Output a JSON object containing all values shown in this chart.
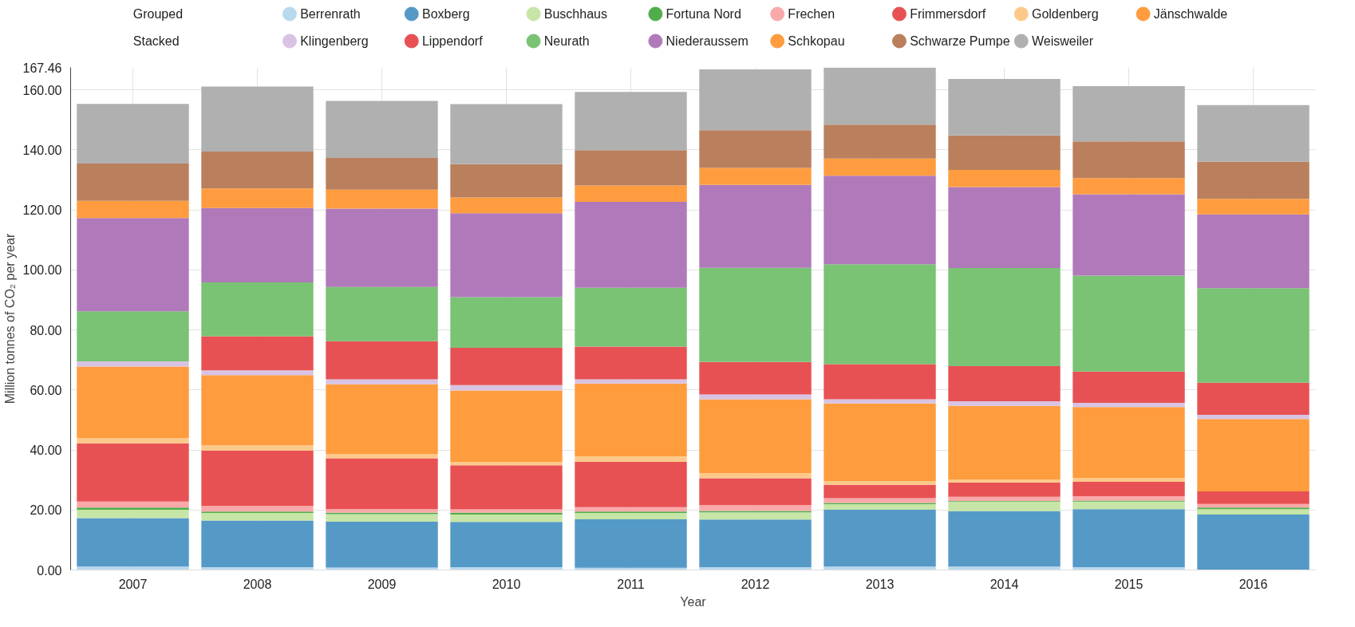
{
  "chart_data": {
    "type": "bar",
    "stacked": true,
    "xlabel": "Year",
    "ylabel": "Million tonnes of CO₂ per year",
    "categories": [
      "2007",
      "2008",
      "2009",
      "2010",
      "2011",
      "2012",
      "2013",
      "2014",
      "2015",
      "2016"
    ],
    "ylim": [
      0,
      167.46
    ],
    "yticks": [
      {
        "value": 0,
        "label": "0.00"
      },
      {
        "value": 20,
        "label": "20.00"
      },
      {
        "value": 40,
        "label": "40.00"
      },
      {
        "value": 60,
        "label": "60.00"
      },
      {
        "value": 80,
        "label": "80.00"
      },
      {
        "value": 100,
        "label": "100.00"
      },
      {
        "value": 120,
        "label": "120.00"
      },
      {
        "value": 140,
        "label": "140.00"
      },
      {
        "value": 160,
        "label": "160.00"
      },
      {
        "value": 167.46,
        "label": "167.46"
      }
    ],
    "grid": true,
    "legend": "top",
    "annotations": [
      "Grouped",
      "Stacked"
    ],
    "series": [
      {
        "name": "Berrenrath",
        "color": "#b9d9ee",
        "values": [
          1.1,
          0.9,
          0.8,
          0.9,
          0.7,
          0.9,
          1.1,
          1.1,
          0.9,
          0
        ]
      },
      {
        "name": "Boxberg",
        "color": "#5599c7",
        "values": [
          16.2,
          15.6,
          15.3,
          15.1,
          16.2,
          15.9,
          19.0,
          18.5,
          19.4,
          18.5
        ]
      },
      {
        "name": "Buschhaus",
        "color": "#c6e5a6",
        "values": [
          2.8,
          2.5,
          2.5,
          2.5,
          2.1,
          2.4,
          1.8,
          3.2,
          2.5,
          1.8
        ]
      },
      {
        "name": "Fortuna Nord",
        "color": "#4fae4b",
        "values": [
          0.7,
          0.5,
          0.5,
          0.6,
          0.5,
          0.5,
          0.4,
          0.2,
          0.3,
          0.5
        ]
      },
      {
        "name": "Frechen",
        "color": "#f9a9a9",
        "values": [
          2.0,
          1.8,
          1.2,
          1.1,
          1.4,
          1.9,
          1.6,
          1.4,
          1.5,
          1.2
        ]
      },
      {
        "name": "Frimmersdorf",
        "color": "#e85153",
        "values": [
          19.4,
          18.5,
          16.9,
          14.7,
          15.1,
          9.0,
          4.5,
          4.8,
          4.8,
          4.2
        ]
      },
      {
        "name": "Goldenberg",
        "color": "#fdc98a",
        "values": [
          1.7,
          1.7,
          1.4,
          1.1,
          1.9,
          1.7,
          1.2,
          1.0,
          1.3,
          0
        ]
      },
      {
        "name": "Jänschwalde",
        "color": "#fe9c3e",
        "values": [
          23.9,
          23.4,
          23.3,
          23.8,
          24.2,
          24.6,
          25.9,
          24.5,
          23.6,
          24.1
        ]
      },
      {
        "name": "Klingenberg",
        "color": "#d9c3e3",
        "values": [
          1.7,
          1.6,
          1.6,
          1.8,
          1.4,
          1.6,
          1.4,
          1.5,
          1.4,
          1.4
        ]
      },
      {
        "name": "Lippendorf",
        "color": "#e85154",
        "values": [
          0,
          11.4,
          12.7,
          12.4,
          10.9,
          10.8,
          11.7,
          11.7,
          10.4,
          10.7
        ]
      },
      {
        "name": "Neurath",
        "color": "#7ac274",
        "values": [
          16.7,
          17.9,
          18.1,
          16.9,
          19.6,
          31.4,
          33.3,
          32.7,
          32.0,
          31.5
        ]
      },
      {
        "name": "Niederaussem",
        "color": "#b07aba",
        "values": [
          31.1,
          24.8,
          26.1,
          28.0,
          28.7,
          27.6,
          29.5,
          27.0,
          27.1,
          24.6
        ]
      },
      {
        "name": "Schkopau",
        "color": "#fe9c3f",
        "values": [
          5.7,
          6.5,
          6.3,
          5.2,
          5.4,
          5.7,
          5.7,
          5.7,
          5.4,
          5.2
        ]
      },
      {
        "name": "Schwarze Pumpe",
        "color": "#ba7f5c",
        "values": [
          12.4,
          12.3,
          10.6,
          11.1,
          11.8,
          12.5,
          11.3,
          11.5,
          12.2,
          12.3
        ]
      },
      {
        "name": "Weisweiler",
        "color": "#b0b0b0",
        "values": [
          19.9,
          21.7,
          19.0,
          20.0,
          19.4,
          20.3,
          19.0,
          18.8,
          18.4,
          18.9
        ]
      }
    ]
  }
}
